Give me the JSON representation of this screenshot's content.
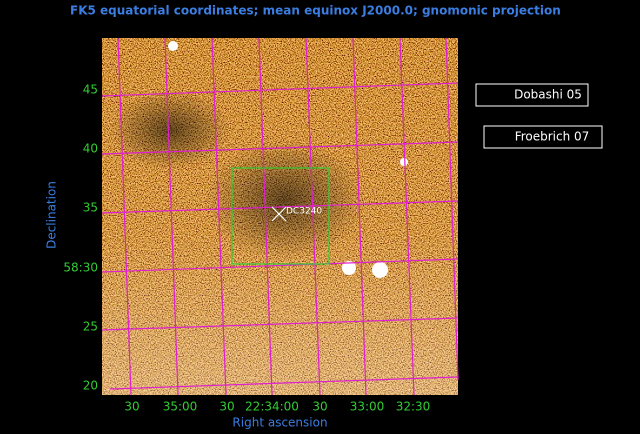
{
  "header": {
    "title": "FK5 equatorial coordinates; mean equinox J2000.0; gnomonic projection"
  },
  "axes": {
    "y_label": "Declination",
    "x_label": "Right ascension",
    "y_ticks": [
      "45",
      "40",
      "35",
      "58:30",
      "25",
      "20"
    ],
    "x_ticks": [
      "30",
      "35:00",
      "30",
      "22:34:00",
      "30",
      "33:00",
      "32:30"
    ]
  },
  "object": {
    "label": "DC3240"
  },
  "buttons": [
    "Dobashi 05",
    "Froebrich 07"
  ]
}
